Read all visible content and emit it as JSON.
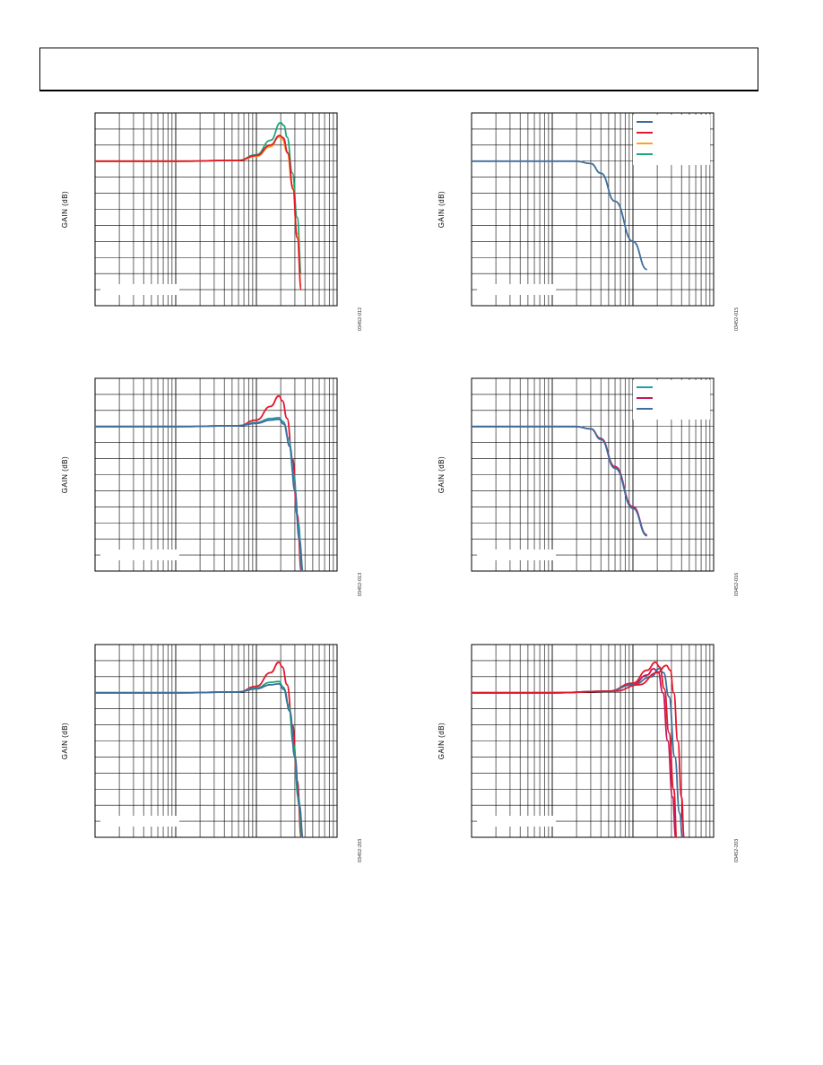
{
  "page": {
    "header": ""
  },
  "colors": {
    "green": "#1aa876",
    "red": "#e4182b",
    "orange": "#f5a623",
    "blue": "#3e6e9e",
    "teal": "#2a9aa6",
    "magenta": "#c2185b",
    "grid": "#000000"
  },
  "chart_data": [
    {
      "id": "p1",
      "type": "line",
      "ylabel": "GAIN (dB)",
      "figure_code": "03452-012",
      "xscale": "log",
      "series": [
        {
          "color": "green",
          "values": [
            [
              1,
              0
            ],
            [
              10,
              0
            ],
            [
              60,
              0.1
            ],
            [
              100,
              0.8
            ],
            [
              150,
              2.6
            ],
            [
              200,
              4.8
            ],
            [
              220,
              4.4
            ],
            [
              240,
              3
            ],
            [
              280,
              -1.5
            ],
            [
              320,
              -7
            ],
            [
              360,
              -14
            ]
          ]
        },
        {
          "color": "orange",
          "values": [
            [
              1,
              0
            ],
            [
              10,
              0
            ],
            [
              60,
              0.1
            ],
            [
              100,
              0.6
            ],
            [
              150,
              1.8
            ],
            [
              190,
              3
            ],
            [
              210,
              2.7
            ],
            [
              240,
              1.2
            ],
            [
              280,
              -3
            ],
            [
              320,
              -9
            ],
            [
              360,
              -16
            ]
          ]
        },
        {
          "color": "red",
          "values": [
            [
              1,
              0
            ],
            [
              10,
              0
            ],
            [
              60,
              0.1
            ],
            [
              100,
              0.7
            ],
            [
              150,
              2
            ],
            [
              195,
              3.2
            ],
            [
              215,
              2.9
            ],
            [
              245,
              1
            ],
            [
              285,
              -3.5
            ],
            [
              320,
              -9.5
            ],
            [
              360,
              -16
            ]
          ]
        }
      ]
    },
    {
      "id": "p2",
      "type": "line",
      "ylabel": "GAIN (dB)",
      "figure_code": "03452-015",
      "xscale": "log",
      "legend": "top-right",
      "legend_colors": [
        "blue",
        "red",
        "orange",
        "green"
      ],
      "series": [
        {
          "color": "blue",
          "values": [
            [
              1,
              0
            ],
            [
              10,
              0
            ],
            [
              20,
              0
            ],
            [
              30,
              -0.3
            ],
            [
              40,
              -1.5
            ],
            [
              60,
              -5
            ],
            [
              100,
              -10
            ],
            [
              150,
              -13.5
            ]
          ]
        }
      ]
    },
    {
      "id": "p3",
      "type": "line",
      "ylabel": "GAIN (dB)",
      "figure_code": "03452-013",
      "xscale": "log",
      "series": [
        {
          "color": "red",
          "values": [
            [
              1,
              0
            ],
            [
              10,
              0
            ],
            [
              60,
              0.1
            ],
            [
              100,
              0.8
            ],
            [
              150,
              2.5
            ],
            [
              190,
              3.8
            ],
            [
              210,
              3.2
            ],
            [
              240,
              1
            ],
            [
              280,
              -4
            ],
            [
              320,
              -11
            ],
            [
              360,
              -18
            ]
          ]
        },
        {
          "color": "teal",
          "values": [
            [
              1,
              0
            ],
            [
              10,
              0
            ],
            [
              60,
              0.1
            ],
            [
              100,
              0.5
            ],
            [
              150,
              1
            ],
            [
              190,
              1.1
            ],
            [
              215,
              0.6
            ],
            [
              250,
              -1.5
            ],
            [
              290,
              -6
            ],
            [
              330,
              -12
            ],
            [
              370,
              -18
            ]
          ]
        },
        {
          "color": "blue",
          "values": [
            [
              1,
              0
            ],
            [
              10,
              0
            ],
            [
              60,
              0.1
            ],
            [
              100,
              0.4
            ],
            [
              150,
              0.8
            ],
            [
              190,
              0.9
            ],
            [
              220,
              0.3
            ],
            [
              260,
              -2.5
            ],
            [
              300,
              -8
            ],
            [
              340,
              -14
            ],
            [
              380,
              -18
            ]
          ]
        }
      ]
    },
    {
      "id": "p4",
      "type": "line",
      "ylabel": "GAIN (dB)",
      "figure_code": "03452-016",
      "xscale": "log",
      "legend": "top-right",
      "legend_colors": [
        "teal",
        "magenta",
        "blue"
      ],
      "series": [
        {
          "color": "magenta",
          "values": [
            [
              1,
              0
            ],
            [
              10,
              0
            ],
            [
              20,
              0
            ],
            [
              30,
              -0.3
            ],
            [
              40,
              -1.5
            ],
            [
              60,
              -5
            ],
            [
              100,
              -10
            ],
            [
              150,
              -13.5
            ]
          ]
        },
        {
          "color": "blue",
          "values": [
            [
              1,
              0
            ],
            [
              10,
              0
            ],
            [
              20,
              0
            ],
            [
              30,
              -0.3
            ],
            [
              40,
              -1.6
            ],
            [
              60,
              -5.2
            ],
            [
              100,
              -10.2
            ],
            [
              150,
              -13.6
            ]
          ]
        }
      ]
    },
    {
      "id": "p5",
      "type": "line",
      "ylabel": "GAIN (dB)",
      "figure_code": "03452-203",
      "xscale": "log",
      "series": [
        {
          "color": "red",
          "values": [
            [
              1,
              0
            ],
            [
              10,
              0
            ],
            [
              60,
              0.1
            ],
            [
              100,
              0.8
            ],
            [
              150,
              2.5
            ],
            [
              190,
              3.8
            ],
            [
              210,
              3.2
            ],
            [
              240,
              1
            ],
            [
              280,
              -4
            ],
            [
              320,
              -11
            ],
            [
              360,
              -18
            ]
          ]
        },
        {
          "color": "green",
          "values": [
            [
              1,
              0
            ],
            [
              10,
              0
            ],
            [
              60,
              0.1
            ],
            [
              100,
              0.6
            ],
            [
              150,
              1.3
            ],
            [
              190,
              1.4
            ],
            [
              215,
              0.7
            ],
            [
              250,
              -1.5
            ],
            [
              290,
              -6.5
            ],
            [
              330,
              -13
            ],
            [
              370,
              -18
            ]
          ]
        },
        {
          "color": "blue",
          "values": [
            [
              1,
              0
            ],
            [
              10,
              0
            ],
            [
              60,
              0.1
            ],
            [
              100,
              0.5
            ],
            [
              150,
              1
            ],
            [
              190,
              1.1
            ],
            [
              220,
              0.4
            ],
            [
              260,
              -2.3
            ],
            [
              300,
              -8
            ],
            [
              340,
              -14
            ],
            [
              380,
              -18
            ]
          ]
        }
      ]
    },
    {
      "id": "p6",
      "type": "line",
      "ylabel": "GAIN (dB)",
      "figure_code": "03452-203",
      "xscale": "log",
      "series": [
        {
          "color": "red",
          "values": [
            [
              1,
              0
            ],
            [
              10,
              0
            ],
            [
              50,
              0.2
            ],
            [
              100,
              1.2
            ],
            [
              150,
              2.8
            ],
            [
              190,
              3.8
            ],
            [
              215,
              3.2
            ],
            [
              245,
              0.5
            ],
            [
              280,
              -5
            ],
            [
              320,
              -12
            ],
            [
              350,
              -18
            ]
          ]
        },
        {
          "color": "magenta",
          "values": [
            [
              1,
              0
            ],
            [
              10,
              0
            ],
            [
              50,
              0.2
            ],
            [
              100,
              1
            ],
            [
              150,
              2.2
            ],
            [
              180,
              3
            ],
            [
              205,
              2.6
            ],
            [
              235,
              0
            ],
            [
              270,
              -6
            ],
            [
              310,
              -13
            ],
            [
              340,
              -18
            ]
          ]
        },
        {
          "color": "blue",
          "values": [
            [
              1,
              0
            ],
            [
              10,
              0
            ],
            [
              50,
              0.2
            ],
            [
              100,
              1
            ],
            [
              170,
              2
            ],
            [
              210,
              3
            ],
            [
              240,
              2.5
            ],
            [
              280,
              -0.5
            ],
            [
              330,
              -8
            ],
            [
              380,
              -15
            ],
            [
              410,
              -18
            ]
          ]
        },
        {
          "color": "red",
          "values": [
            [
              1,
              0
            ],
            [
              10,
              0
            ],
            [
              60,
              0.2
            ],
            [
              120,
              1
            ],
            [
              200,
              2.5
            ],
            [
              260,
              3.4
            ],
            [
              290,
              2.8
            ],
            [
              320,
              0
            ],
            [
              360,
              -6
            ],
            [
              400,
              -13
            ],
            [
              430,
              -18
            ]
          ]
        }
      ]
    }
  ]
}
